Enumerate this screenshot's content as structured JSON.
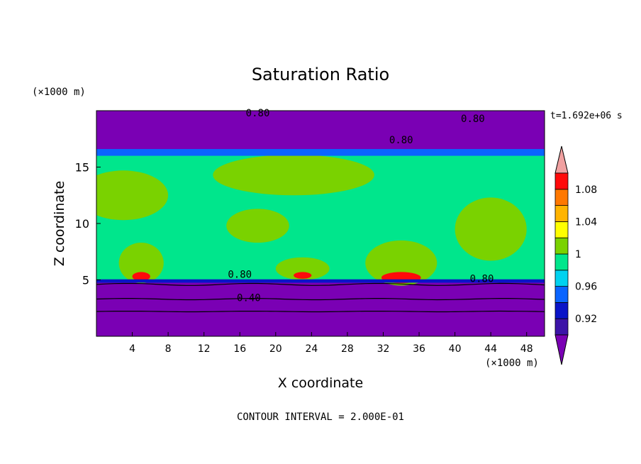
{
  "chart_data": {
    "type": "heatmap",
    "title": "Saturation Ratio",
    "xlabel": "X coordinate",
    "ylabel": "Z coordinate",
    "x_unit": "(×1000 m)",
    "y_unit": "(×1000 m)",
    "time_label": "t=1.692e+06 s",
    "footer": "CONTOUR INTERVAL = 2.000E-01",
    "xlim": [
      0,
      50
    ],
    "ylim": [
      0,
      20
    ],
    "x_ticks": [
      4,
      8,
      12,
      16,
      20,
      24,
      28,
      32,
      36,
      40,
      44,
      48
    ],
    "y_ticks": [
      5,
      10,
      15
    ],
    "contour_labels": [
      {
        "text": "0.80",
        "x": 18,
        "y": 19.5
      },
      {
        "text": "0.80",
        "x": 42,
        "y": 19.0
      },
      {
        "text": "0.80",
        "x": 34,
        "y": 17.1
      },
      {
        "text": "0.80",
        "x": 16,
        "y": 5.2
      },
      {
        "text": "0.80",
        "x": 43,
        "y": 4.8
      },
      {
        "text": "0.40",
        "x": 17,
        "y": 3.1
      }
    ],
    "colorbar": {
      "levels": [
        0.92,
        0.94,
        0.96,
        0.98,
        1.0,
        1.02,
        1.04,
        1.06,
        1.08,
        1.1
      ],
      "labels": [
        "0.92",
        "0.96",
        "1",
        "1.04",
        "1.08"
      ],
      "label_values": [
        0.92,
        0.96,
        1.0,
        1.04,
        1.08
      ],
      "colors": [
        "#7a00b4",
        "#3c14a8",
        "#0a14c8",
        "#0a64ff",
        "#00d2f0",
        "#00e68c",
        "#7ad200",
        "#ffff00",
        "#ffb400",
        "#ff7800",
        "#ff0a0a",
        "#f0a0a0"
      ]
    },
    "fields": [
      {
        "level": "purple",
        "color": "#7a00b4",
        "x": [
          0,
          50
        ],
        "y": [
          0,
          20
        ]
      },
      {
        "level": "green",
        "color": "#00e68c",
        "x": [
          0,
          50
        ],
        "y": [
          4.9,
          16.2
        ]
      },
      {
        "level": "lime",
        "color": "#7ad200",
        "regions": [
          {
            "x": 3,
            "y": 12.5,
            "rx": 5,
            "ry": 2.2
          },
          {
            "x": 22,
            "y": 14.3,
            "rx": 9,
            "ry": 1.8
          },
          {
            "x": 34,
            "y": 6.5,
            "rx": 4,
            "ry": 2.0
          },
          {
            "x": 44,
            "y": 9.5,
            "rx": 4,
            "ry": 2.8
          },
          {
            "x": 23,
            "y": 6.0,
            "rx": 3,
            "ry": 1.0
          },
          {
            "x": 5,
            "y": 6.5,
            "rx": 2.5,
            "ry": 1.8
          },
          {
            "x": 18,
            "y": 9.8,
            "rx": 3.5,
            "ry": 1.5
          }
        ]
      },
      {
        "level": "red-core",
        "color": "#ff0a0a",
        "regions": [
          {
            "x": 34,
            "y": 5.2,
            "rx": 2.2,
            "ry": 0.5
          },
          {
            "x": 5,
            "y": 5.3,
            "rx": 1.0,
            "ry": 0.4
          },
          {
            "x": 23,
            "y": 5.4,
            "rx": 1.0,
            "ry": 0.3
          }
        ]
      }
    ]
  }
}
